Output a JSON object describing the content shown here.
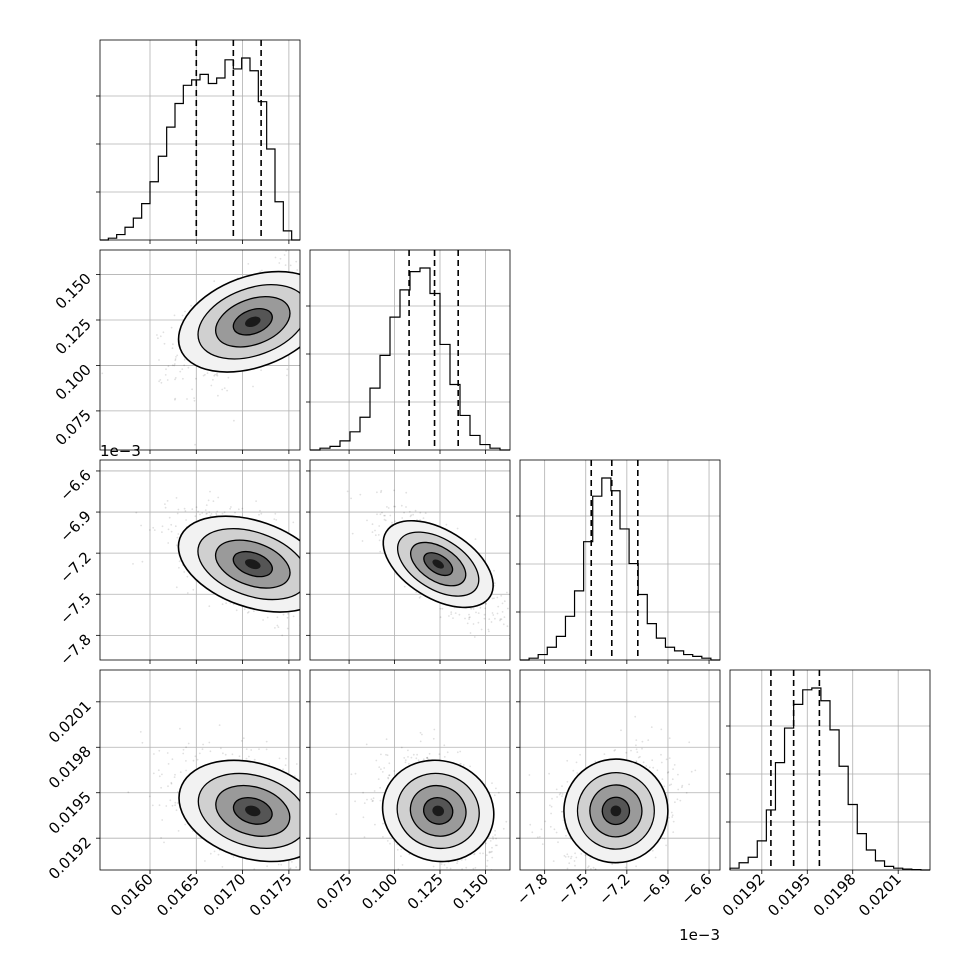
{
  "chart_data": {
    "type": "corner",
    "parameters": [
      {
        "range": [
          0.01546,
          0.01762
        ],
        "ticks": [
          0.016,
          0.0165,
          0.017,
          0.0175
        ],
        "tick_labels": [
          "0.0160",
          "0.0165",
          "0.0170",
          "0.0175"
        ],
        "offset_text": "",
        "quantiles": [
          0.0165,
          0.0169,
          0.0172
        ],
        "peak": 0.01711
      },
      {
        "range": [
          0.0535,
          0.1635
        ],
        "ticks": [
          0.075,
          0.1,
          0.125,
          0.15
        ],
        "tick_labels": [
          "0.075",
          "0.100",
          "0.125",
          "0.150"
        ],
        "offset_text": "",
        "quantiles": [
          0.108,
          0.122,
          0.135
        ],
        "peak": 0.124
      },
      {
        "range": [
          -7.98,
          -6.52
        ],
        "ticks": [
          -7.8,
          -7.5,
          -7.2,
          -6.9,
          -6.6
        ],
        "tick_labels": [
          "−7.8",
          "−7.5",
          "−7.2",
          "−6.9",
          "−6.6"
        ],
        "offset_text": "1e−3",
        "quantiles": [
          -7.46,
          -7.31,
          -7.12
        ],
        "peak": -7.28
      },
      {
        "range": [
          0.01899,
          0.02031
        ],
        "ticks": [
          0.0192,
          0.0195,
          0.0198,
          0.0201
        ],
        "tick_labels": [
          "0.0192",
          "0.0195",
          "0.0198",
          "0.0201"
        ],
        "offset_text": "",
        "quantiles": [
          0.01926,
          0.01941,
          0.01958
        ],
        "peak": 0.01938
      }
    ],
    "histograms": [
      [
        0.0,
        0.01,
        0.03,
        0.07,
        0.12,
        0.2,
        0.32,
        0.46,
        0.62,
        0.75,
        0.85,
        0.88,
        0.91,
        0.86,
        0.89,
        0.99,
        0.94,
        1.0,
        0.93,
        0.76,
        0.5,
        0.21,
        0.05,
        0.0
      ],
      [
        0.0,
        0.01,
        0.02,
        0.05,
        0.1,
        0.18,
        0.34,
        0.52,
        0.73,
        0.88,
        0.98,
        1.0,
        0.86,
        0.58,
        0.36,
        0.19,
        0.08,
        0.03,
        0.01,
        0.0
      ],
      [
        0.0,
        0.01,
        0.03,
        0.07,
        0.13,
        0.24,
        0.38,
        0.65,
        0.9,
        1.0,
        0.93,
        0.72,
        0.53,
        0.36,
        0.2,
        0.12,
        0.07,
        0.05,
        0.03,
        0.02,
        0.01,
        0.0
      ],
      [
        0.01,
        0.04,
        0.07,
        0.16,
        0.33,
        0.59,
        0.78,
        0.91,
        0.99,
        1.0,
        0.93,
        0.77,
        0.57,
        0.36,
        0.2,
        0.11,
        0.05,
        0.02,
        0.01,
        0.005,
        0.002,
        0.0
      ]
    ],
    "correlations": {
      "1_0": 0.55,
      "2_0": -0.55,
      "2_1": -0.75,
      "3_0": -0.45,
      "3_1": -0.35,
      "3_2": 0.25
    },
    "grid": true,
    "contours": "filled 2D histograms with density contour lines"
  }
}
